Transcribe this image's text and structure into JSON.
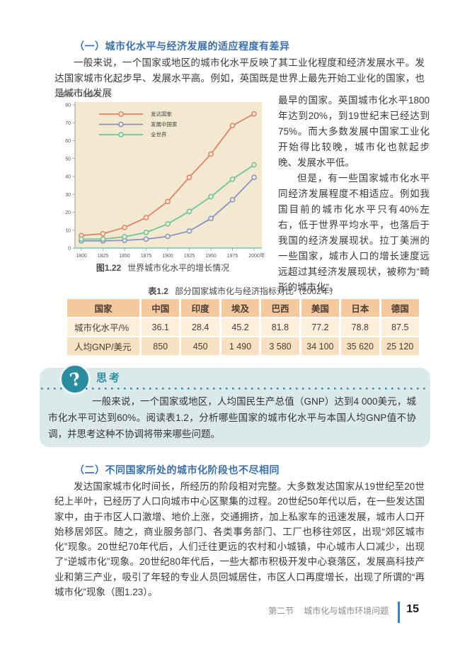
{
  "section1": {
    "heading": "（一）城市化水平与经济发展的适应程度有差异",
    "para1": "一般来说，一个国家或地区的城市化水平反映了其工业化程度和经济发展水平。发达国家城市化起步早、发展水平高。例如，英国既是世界上最先开始工业化的国家，也是城市化发展",
    "para1_cont": "最早的国家。英国城市化水平1800年达到20%，到19世纪末已经达到75%。而大多数发展中国家工业化开始得比较晚，城市化也就起步晚、发展水平低。",
    "para2": "但是，有一些国家城市化水平同经济发展程度不相适应。例如我国目前的城市化水平只有40%左右，低于世界平均水平，也落后于我国的经济发展现状。拉丁美洲的一些国家，城市人口的增长速度远远超过其经济发展现状，被称为“畸形的城市化”。"
  },
  "figure": {
    "caption_label": "图1.22",
    "caption_text": "世界城市化水平的增长情况"
  },
  "chart_data": {
    "type": "line",
    "x": [
      1800,
      1825,
      1850,
      1875,
      1900,
      1925,
      1950,
      1975,
      2000
    ],
    "x_suffix": "年",
    "ylabel": "城市人口比重/%",
    "ylim": [
      0,
      80
    ],
    "ytick_step": 10,
    "grid": false,
    "legend_position": "top-left",
    "bg_color": "#f2e9d0",
    "x_axis_color": "#6fc5bf",
    "y_axis_color": "#999999",
    "series": [
      {
        "name": "发达国家",
        "color": "#e0826a",
        "values": [
          7,
          8,
          11.5,
          17,
          26,
          39.5,
          52.5,
          68.5,
          75
        ]
      },
      {
        "name": "发展中国家",
        "color": "#8a92c8",
        "values": [
          4,
          4,
          4.3,
          5,
          6.5,
          9.5,
          16.5,
          27,
          39.5
        ]
      },
      {
        "name": "全世界",
        "color": "#70c29e",
        "values": [
          5,
          5,
          6.3,
          8.7,
          13.5,
          20.5,
          28.7,
          38.5,
          46.5
        ]
      }
    ]
  },
  "table": {
    "caption_label": "表1.2",
    "caption_text": "部分国家城市化与经济指标对比（2002年）",
    "header": [
      "国家",
      "中国",
      "印度",
      "埃及",
      "巴西",
      "美国",
      "日本",
      "德国"
    ],
    "rows": [
      {
        "label": "城市化水平/%",
        "values": [
          "36.1",
          "28.4",
          "45.2",
          "81.8",
          "77.2",
          "78.8",
          "87.5"
        ]
      },
      {
        "label": "人均GNP/美元",
        "values": [
          "850",
          "450",
          "1 490",
          "3 580",
          "34 100",
          "35 620",
          "25 120"
        ]
      }
    ]
  },
  "think": {
    "title": "思考",
    "icon_glyph": "?",
    "accent_color": "#2e8fa0",
    "text": "一般来说，一个国家或地区，人均国民生产总值（GNP）达到4 000美元，城市化水平可达到60%。阅读表1.2，分析哪些国家的城市化水平与本国人均GNP值不协调，并思考这种不协调将带来哪些问题。"
  },
  "section2": {
    "heading": "（二）不同国家所处的城市化阶段也不尽相同",
    "para": "发达国家城市化时间长，所经历的阶段相对完整。大多数发达国家从19世纪至20世纪上半叶，已经历了人口向城市中心区聚集的过程。20世纪50年代以后，在一些发达国家中，由于市区人口激增、地价上涨，交通拥挤，加上私家车的迅速发展，城市人口开始移居郊区。随之，商业服务部门、各类事务部门、工厂也移往郊区，出现“郊区城市化”现象。20世纪70年代后，人们迁往更远的农村和小城镇，中心城市人口减少，出现了“逆城市化”现象。20世纪80年代后，一些大都市积极开发中心衰落区，发展高科技产业和第三产业，吸引了年轻的专业人员回城居住，市区人口再度增长，出现了所谓的“再城市化”现象（图1.23）。"
  },
  "footer": {
    "section_label": "第二节",
    "section_title": "城市化与城市环境问题",
    "page_number": "15"
  }
}
